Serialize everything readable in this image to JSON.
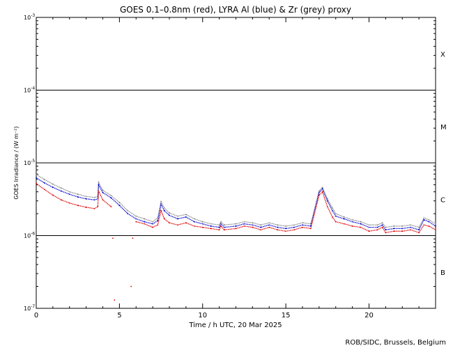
{
  "chart_data": {
    "type": "scatter",
    "title": "GOES 0.1–0.8nm (red), LYRA Al (blue) & Zr (grey) proxy",
    "xlabel": "Time / h UTC, 20 Mar 2025",
    "ylabel": "GOES Irradiance / (W m⁻²)",
    "xlim": [
      0,
      24
    ],
    "ylim": [
      1e-07,
      0.001
    ],
    "yscale": "log",
    "x_ticks": [
      {
        "value": 0,
        "label": "0"
      },
      {
        "value": 5,
        "label": "5"
      },
      {
        "value": 10,
        "label": "10"
      },
      {
        "value": 15,
        "label": "15"
      },
      {
        "value": 20,
        "label": "20"
      }
    ],
    "y_ticks": [
      {
        "value": 1e-07,
        "mant": "10",
        "exp": "-7"
      },
      {
        "value": 1e-06,
        "mant": "10",
        "exp": "-6"
      },
      {
        "value": 1e-05,
        "mant": "10",
        "exp": "-5"
      },
      {
        "value": 0.0001,
        "mant": "10",
        "exp": "-4"
      },
      {
        "value": 0.001,
        "mant": "10",
        "exp": "-3"
      }
    ],
    "flare_levels": [
      1e-06,
      1e-05,
      0.0001
    ],
    "flare_classes": [
      {
        "label": "X",
        "value": 0.000316
      },
      {
        "label": "M",
        "value": 3.16e-05
      },
      {
        "label": "C",
        "value": 3.16e-06
      },
      {
        "label": "B",
        "value": 3.16e-07
      }
    ],
    "colors": {
      "goes": "#e00000",
      "al": "#0000d0",
      "zr": "#888888"
    },
    "series": [
      {
        "name": "GOES 0.1–0.8nm",
        "color": "#e00000",
        "x": [
          0,
          0.5,
          1,
          1.5,
          2,
          2.5,
          3,
          3.5,
          3.7,
          3.75,
          4.0,
          4.5,
          5.0,
          5.8,
          6.0,
          6.5,
          7.0,
          7.3,
          7.5,
          7.7,
          8.0,
          8.5,
          9.0,
          9.5,
          10.0,
          10.5,
          11.0,
          11.1,
          11.3,
          12.0,
          12.5,
          13.0,
          13.5,
          14.0,
          14.5,
          15.0,
          15.5,
          16.0,
          16.5,
          17.0,
          17.2,
          17.5,
          17.8,
          18.0,
          18.5,
          19.0,
          19.5,
          20.0,
          20.5,
          20.8,
          21.0,
          21.5,
          22.0,
          22.5,
          23.0,
          23.3,
          23.6,
          24.0
        ],
        "y": [
          5.2e-06,
          4.3e-06,
          3.6e-06,
          3.1e-06,
          2.8e-06,
          2.6e-06,
          2.45e-06,
          2.35e-06,
          2.5e-06,
          4.1e-06,
          3.1e-06,
          2.5e-06,
          null,
          null,
          1.55e-06,
          1.45e-06,
          1.3e-06,
          1.4e-06,
          2.2e-06,
          1.7e-06,
          1.5e-06,
          1.4e-06,
          1.5e-06,
          1.35e-06,
          1.3e-06,
          1.25e-06,
          1.2e-06,
          1.35e-06,
          1.2e-06,
          1.25e-06,
          1.35e-06,
          1.3e-06,
          1.2e-06,
          1.3e-06,
          1.2e-06,
          1.15e-06,
          1.2e-06,
          1.3e-06,
          1.25e-06,
          3.6e-06,
          4e-06,
          2.5e-06,
          1.8e-06,
          1.55e-06,
          1.45e-06,
          1.35e-06,
          1.3e-06,
          1.15e-06,
          1.2e-06,
          1.3e-06,
          1.1e-06,
          1.15e-06,
          1.15e-06,
          1.2e-06,
          1.1e-06,
          1.4e-06,
          1.35e-06,
          1.2e-06
        ]
      },
      {
        "name": "LYRA Al",
        "color": "#0000d0",
        "x": [
          0,
          0.5,
          1,
          1.5,
          2,
          2.5,
          3,
          3.5,
          3.7,
          3.75,
          4.0,
          4.5,
          5.0,
          5.5,
          6.0,
          6.5,
          7.0,
          7.3,
          7.5,
          7.7,
          8.0,
          8.5,
          9.0,
          9.5,
          10.0,
          10.5,
          11.0,
          11.1,
          11.3,
          12.0,
          12.5,
          13.0,
          13.5,
          14.0,
          14.5,
          15.0,
          15.5,
          16.0,
          16.5,
          17.0,
          17.2,
          17.5,
          17.8,
          18.0,
          18.5,
          19.0,
          19.5,
          20.0,
          20.5,
          20.8,
          21.0,
          21.5,
          22.0,
          22.5,
          23.0,
          23.3,
          23.6,
          24.0
        ],
        "y": [
          6.2e-06,
          5.3e-06,
          4.6e-06,
          4.1e-06,
          3.7e-06,
          3.4e-06,
          3.2e-06,
          3.1e-06,
          3.2e-06,
          5e-06,
          3.9e-06,
          3.3e-06,
          2.6e-06,
          2e-06,
          1.7e-06,
          1.55e-06,
          1.45e-06,
          1.6e-06,
          2.7e-06,
          2.2e-06,
          1.9e-06,
          1.7e-06,
          1.8e-06,
          1.55e-06,
          1.45e-06,
          1.35e-06,
          1.3e-06,
          1.45e-06,
          1.3e-06,
          1.35e-06,
          1.45e-06,
          1.4e-06,
          1.3e-06,
          1.4e-06,
          1.3e-06,
          1.25e-06,
          1.3e-06,
          1.4e-06,
          1.35e-06,
          3.9e-06,
          4.4e-06,
          3e-06,
          2.2e-06,
          1.85e-06,
          1.7e-06,
          1.55e-06,
          1.45e-06,
          1.3e-06,
          1.3e-06,
          1.4e-06,
          1.2e-06,
          1.25e-06,
          1.25e-06,
          1.3e-06,
          1.2e-06,
          1.65e-06,
          1.55e-06,
          1.35e-06
        ]
      },
      {
        "name": "LYRA Zr",
        "color": "#888888",
        "x": [
          0,
          0.5,
          1,
          1.5,
          2,
          2.5,
          3,
          3.5,
          3.7,
          3.75,
          4.0,
          4.5,
          5.0,
          5.5,
          6.0,
          6.5,
          7.0,
          7.3,
          7.5,
          7.7,
          8.0,
          8.5,
          9.0,
          9.5,
          10.0,
          10.5,
          11.0,
          11.1,
          11.3,
          12.0,
          12.5,
          13.0,
          13.5,
          14.0,
          14.5,
          15.0,
          15.5,
          16.0,
          16.5,
          17.0,
          17.2,
          17.5,
          17.8,
          18.0,
          18.5,
          19.0,
          19.5,
          20.0,
          20.5,
          20.8,
          21.0,
          21.5,
          22.0,
          22.5,
          23.0,
          23.3,
          23.6,
          24.0
        ],
        "y": [
          6.9e-06,
          5.9e-06,
          5.1e-06,
          4.5e-06,
          4e-06,
          3.7e-06,
          3.45e-06,
          3.35e-06,
          3.45e-06,
          5.4e-06,
          4.2e-06,
          3.55e-06,
          2.85e-06,
          2.2e-06,
          1.85e-06,
          1.7e-06,
          1.55e-06,
          1.75e-06,
          2.95e-06,
          2.4e-06,
          2.05e-06,
          1.85e-06,
          1.95e-06,
          1.7e-06,
          1.55e-06,
          1.45e-06,
          1.4e-06,
          1.55e-06,
          1.4e-06,
          1.45e-06,
          1.55e-06,
          1.5e-06,
          1.4e-06,
          1.5e-06,
          1.4e-06,
          1.35e-06,
          1.4e-06,
          1.5e-06,
          1.45e-06,
          4.1e-06,
          4.6e-06,
          3.2e-06,
          2.4e-06,
          2e-06,
          1.8e-06,
          1.65e-06,
          1.55e-06,
          1.4e-06,
          1.4e-06,
          1.5e-06,
          1.3e-06,
          1.35e-06,
          1.35e-06,
          1.4e-06,
          1.3e-06,
          1.75e-06,
          1.65e-06,
          1.45e-06
        ]
      }
    ],
    "goes_outliers": [
      {
        "x": 4.6,
        "y": 9.2e-07
      },
      {
        "x": 5.8,
        "y": 9.2e-07
      },
      {
        "x": 4.7,
        "y": 1.3e-07
      },
      {
        "x": 5.7,
        "y": 2e-07
      }
    ]
  },
  "footer": {
    "credit": "ROB/SIDC, Brussels, Belgium"
  }
}
